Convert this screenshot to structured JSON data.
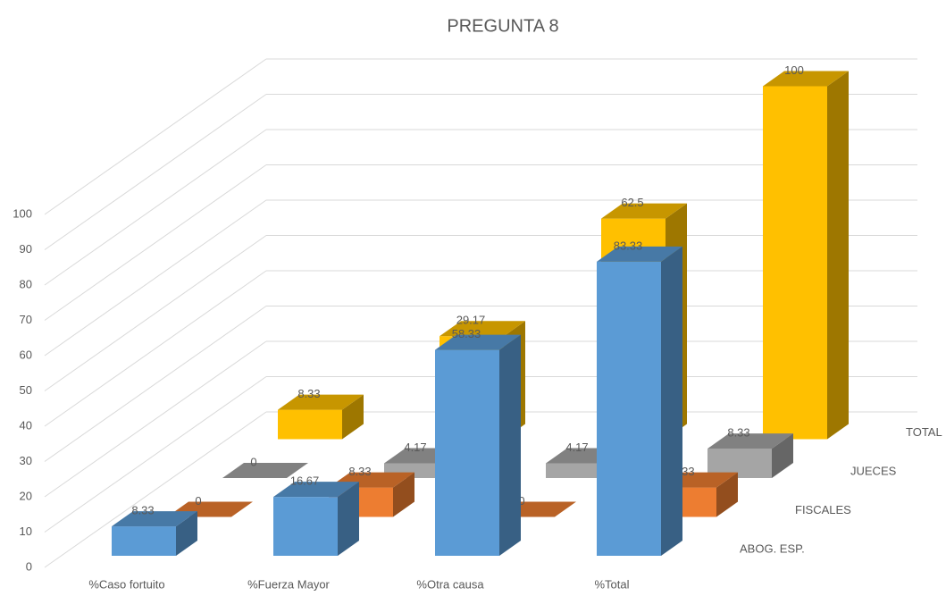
{
  "chart_data": {
    "type": "bar3d",
    "title": "PREGUNTA 8",
    "categories": [
      "%Caso fortuito",
      "%Fuerza Mayor",
      "%Otra causa",
      "%Total"
    ],
    "series": [
      {
        "name": "ABOG. ESP.",
        "color": "#5b9bd5",
        "values": [
          8.33,
          16.67,
          58.33,
          83.33
        ]
      },
      {
        "name": "FISCALES",
        "color": "#ed7d31",
        "values": [
          0,
          8.33,
          0,
          8.33
        ]
      },
      {
        "name": "JUECES",
        "color": "#a5a5a5",
        "values": [
          0,
          4.17,
          4.17,
          8.33
        ]
      },
      {
        "name": "TOTAL",
        "color": "#ffc000",
        "values": [
          8.33,
          29.17,
          62.5,
          100
        ]
      }
    ],
    "ylim": [
      0,
      100
    ],
    "yticks": [
      0,
      10,
      20,
      30,
      40,
      50,
      60,
      70,
      80,
      90,
      100
    ],
    "grid": true
  }
}
